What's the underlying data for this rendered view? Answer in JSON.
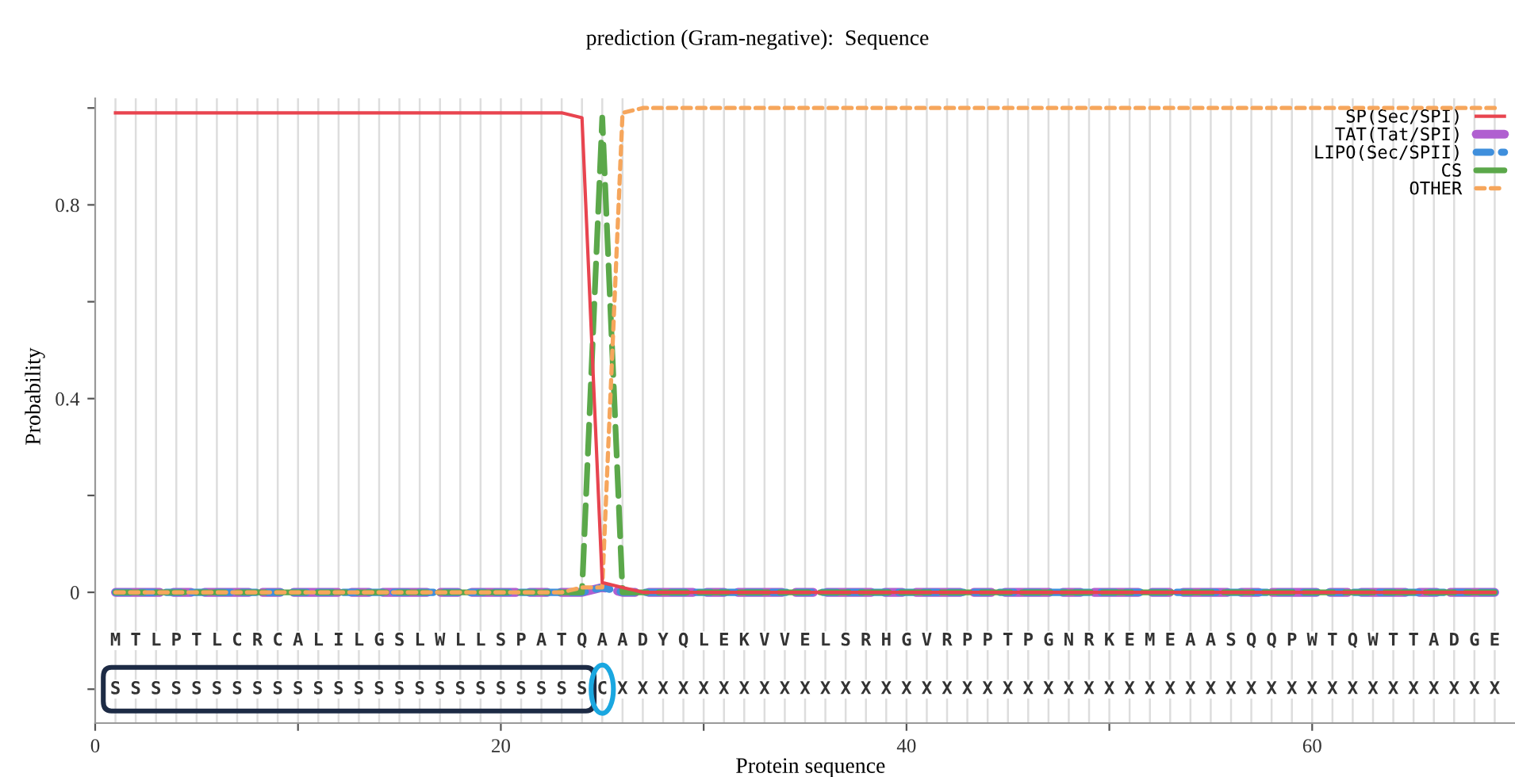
{
  "chart_data": {
    "type": "line",
    "title": "prediction (Gram-negative):  Sequence",
    "xlabel": "Protein sequence",
    "ylabel": "Probability",
    "x": [
      1,
      2,
      3,
      4,
      5,
      6,
      7,
      8,
      9,
      10,
      11,
      12,
      13,
      14,
      15,
      16,
      17,
      18,
      19,
      20,
      21,
      22,
      23,
      24,
      25,
      26,
      27,
      28,
      29,
      30,
      31,
      32,
      33,
      34,
      35,
      36,
      37,
      38,
      39,
      40,
      41,
      42,
      43,
      44,
      45,
      46,
      47,
      48,
      49,
      50,
      51,
      52,
      53,
      54,
      55,
      56,
      57,
      58,
      59,
      60,
      61,
      62,
      63,
      64,
      65,
      66,
      67,
      68,
      69
    ],
    "series": [
      {
        "name": "SP(Sec/SPI)",
        "color": "#e8444f",
        "line_style": "solid",
        "values": [
          0.99,
          0.99,
          0.99,
          0.99,
          0.99,
          0.99,
          0.99,
          0.99,
          0.99,
          0.99,
          0.99,
          0.99,
          0.99,
          0.99,
          0.99,
          0.99,
          0.99,
          0.99,
          0.99,
          0.99,
          0.99,
          0.99,
          0.99,
          0.98,
          0.02,
          0.01,
          0,
          0,
          0,
          0,
          0,
          0,
          0,
          0,
          0,
          0,
          0,
          0,
          0,
          0,
          0,
          0,
          0,
          0,
          0,
          0,
          0,
          0,
          0,
          0,
          0,
          0,
          0,
          0,
          0,
          0,
          0,
          0,
          0,
          0,
          0,
          0,
          0,
          0,
          0,
          0,
          0,
          0,
          0
        ]
      },
      {
        "name": "TAT(Tat/SPI)",
        "color": "#b05fd0",
        "line_style": "dashdot",
        "values": [
          0,
          0,
          0,
          0,
          0,
          0,
          0,
          0,
          0,
          0,
          0,
          0,
          0,
          0,
          0,
          0,
          0,
          0,
          0,
          0,
          0,
          0,
          0,
          0,
          0.01,
          0,
          0,
          0,
          0,
          0,
          0,
          0,
          0,
          0,
          0,
          0,
          0,
          0,
          0,
          0,
          0,
          0,
          0,
          0,
          0,
          0,
          0,
          0,
          0,
          0,
          0,
          0,
          0,
          0,
          0,
          0,
          0,
          0,
          0,
          0,
          0,
          0,
          0,
          0,
          0,
          0,
          0,
          0,
          0
        ]
      },
      {
        "name": "LIPO(Sec/SPII)",
        "color": "#3f8fdc",
        "line_style": "dotted",
        "values": [
          0,
          0,
          0,
          0,
          0,
          0,
          0,
          0,
          0,
          0,
          0,
          0,
          0,
          0,
          0,
          0,
          0,
          0,
          0,
          0,
          0,
          0,
          0,
          0,
          0.01,
          0,
          0,
          0,
          0,
          0,
          0,
          0,
          0,
          0,
          0,
          0,
          0,
          0,
          0,
          0,
          0,
          0,
          0,
          0,
          0,
          0,
          0,
          0,
          0,
          0,
          0,
          0,
          0,
          0,
          0,
          0,
          0,
          0,
          0,
          0,
          0,
          0,
          0,
          0,
          0,
          0,
          0,
          0,
          0
        ]
      },
      {
        "name": "CS",
        "color": "#5ba84a",
        "line_style": "dashed",
        "values": [
          0,
          0,
          0,
          0,
          0,
          0,
          0,
          0,
          0,
          0,
          0,
          0,
          0,
          0,
          0,
          0,
          0,
          0,
          0,
          0,
          0,
          0,
          0,
          0,
          0.98,
          0,
          0,
          0,
          0,
          0,
          0,
          0,
          0,
          0,
          0,
          0,
          0,
          0,
          0,
          0,
          0,
          0,
          0,
          0,
          0,
          0,
          0,
          0,
          0,
          0,
          0,
          0,
          0,
          0,
          0,
          0,
          0,
          0,
          0,
          0,
          0,
          0,
          0,
          0,
          0,
          0,
          0,
          0,
          0
        ]
      },
      {
        "name": "OTHER",
        "color": "#f6a65c",
        "line_style": "dotted",
        "values": [
          0,
          0,
          0,
          0,
          0,
          0,
          0,
          0,
          0,
          0,
          0,
          0,
          0,
          0,
          0,
          0,
          0,
          0,
          0,
          0,
          0,
          0,
          0,
          0.01,
          0.01,
          0.99,
          1,
          1,
          1,
          1,
          1,
          1,
          1,
          1,
          1,
          1,
          1,
          1,
          1,
          1,
          1,
          1,
          1,
          1,
          1,
          1,
          1,
          1,
          1,
          1,
          1,
          1,
          1,
          1,
          1,
          1,
          1,
          1,
          1,
          1,
          1,
          1,
          1,
          1,
          1,
          1,
          1,
          1,
          1
        ]
      }
    ],
    "xlim": [
      0,
      70
    ],
    "xticks": [
      0,
      {
        "value": 10,
        "label": null
      },
      20,
      {
        "value": 30,
        "label": null
      },
      40,
      {
        "value": 50,
        "label": null
      },
      60
    ],
    "ylim": [
      -0.27,
      1.02
    ],
    "yticks": [
      {
        "value": -0.2,
        "label": null
      },
      0,
      {
        "value": 0.2,
        "label": null
      },
      0.4,
      {
        "value": 0.6,
        "label": null
      },
      0.8,
      {
        "value": 1.0,
        "label": null
      }
    ],
    "grid": "x",
    "legend": "top right",
    "annotations": [
      {
        "text": "M",
        "x": 1,
        "y": -0.1
      },
      {
        "text": "T",
        "x": 2,
        "y": -0.1
      },
      {
        "text": "L",
        "x": 3,
        "y": -0.1
      },
      {
        "text": "P",
        "x": 4,
        "y": -0.1
      },
      {
        "text": "T",
        "x": 5,
        "y": -0.1
      },
      {
        "text": "L",
        "x": 6,
        "y": -0.1
      },
      {
        "text": "C",
        "x": 7,
        "y": -0.1
      },
      {
        "text": "R",
        "x": 8,
        "y": -0.1
      },
      {
        "text": "C",
        "x": 9,
        "y": -0.1
      },
      {
        "text": "A",
        "x": 10,
        "y": -0.1
      },
      {
        "text": "L",
        "x": 11,
        "y": -0.1
      },
      {
        "text": "I",
        "x": 12,
        "y": -0.1
      },
      {
        "text": "L",
        "x": 13,
        "y": -0.1
      },
      {
        "text": "G",
        "x": 14,
        "y": -0.1
      },
      {
        "text": "S",
        "x": 15,
        "y": -0.1
      },
      {
        "text": "L",
        "x": 16,
        "y": -0.1
      },
      {
        "text": "W",
        "x": 17,
        "y": -0.1
      },
      {
        "text": "L",
        "x": 18,
        "y": -0.1
      },
      {
        "text": "L",
        "x": 19,
        "y": -0.1
      },
      {
        "text": "S",
        "x": 20,
        "y": -0.1
      },
      {
        "text": "P",
        "x": 21,
        "y": -0.1
      },
      {
        "text": "A",
        "x": 22,
        "y": -0.1
      },
      {
        "text": "T",
        "x": 23,
        "y": -0.1
      },
      {
        "text": "Q",
        "x": 24,
        "y": -0.1
      },
      {
        "text": "A",
        "x": 25,
        "y": -0.1
      },
      {
        "text": "A",
        "x": 26,
        "y": -0.1
      },
      {
        "text": "D",
        "x": 27,
        "y": -0.1
      },
      {
        "text": "Y",
        "x": 28,
        "y": -0.1
      },
      {
        "text": "Q",
        "x": 29,
        "y": -0.1
      },
      {
        "text": "L",
        "x": 30,
        "y": -0.1
      },
      {
        "text": "E",
        "x": 31,
        "y": -0.1
      },
      {
        "text": "K",
        "x": 32,
        "y": -0.1
      },
      {
        "text": "V",
        "x": 33,
        "y": -0.1
      },
      {
        "text": "V",
        "x": 34,
        "y": -0.1
      },
      {
        "text": "E",
        "x": 35,
        "y": -0.1
      },
      {
        "text": "L",
        "x": 36,
        "y": -0.1
      },
      {
        "text": "S",
        "x": 37,
        "y": -0.1
      },
      {
        "text": "R",
        "x": 38,
        "y": -0.1
      },
      {
        "text": "H",
        "x": 39,
        "y": -0.1
      },
      {
        "text": "G",
        "x": 40,
        "y": -0.1
      },
      {
        "text": "V",
        "x": 41,
        "y": -0.1
      },
      {
        "text": "R",
        "x": 42,
        "y": -0.1
      },
      {
        "text": "P",
        "x": 43,
        "y": -0.1
      },
      {
        "text": "P",
        "x": 44,
        "y": -0.1
      },
      {
        "text": "T",
        "x": 45,
        "y": -0.1
      },
      {
        "text": "P",
        "x": 46,
        "y": -0.1
      },
      {
        "text": "G",
        "x": 47,
        "y": -0.1
      },
      {
        "text": "N",
        "x": 48,
        "y": -0.1
      },
      {
        "text": "R",
        "x": 49,
        "y": -0.1
      },
      {
        "text": "K",
        "x": 50,
        "y": -0.1
      },
      {
        "text": "E",
        "x": 51,
        "y": -0.1
      },
      {
        "text": "M",
        "x": 52,
        "y": -0.1
      },
      {
        "text": "E",
        "x": 53,
        "y": -0.1
      },
      {
        "text": "A",
        "x": 54,
        "y": -0.1
      },
      {
        "text": "A",
        "x": 55,
        "y": -0.1
      },
      {
        "text": "S",
        "x": 56,
        "y": -0.1
      },
      {
        "text": "Q",
        "x": 57,
        "y": -0.1
      },
      {
        "text": "Q",
        "x": 58,
        "y": -0.1
      },
      {
        "text": "P",
        "x": 59,
        "y": -0.1
      },
      {
        "text": "W",
        "x": 60,
        "y": -0.1
      },
      {
        "text": "T",
        "x": 61,
        "y": -0.1
      },
      {
        "text": "Q",
        "x": 62,
        "y": -0.1
      },
      {
        "text": "W",
        "x": 63,
        "y": -0.1
      },
      {
        "text": "T",
        "x": 64,
        "y": -0.1
      },
      {
        "text": "T",
        "x": 65,
        "y": -0.1
      },
      {
        "text": "A",
        "x": 66,
        "y": -0.1
      },
      {
        "text": "D",
        "x": 67,
        "y": -0.1
      },
      {
        "text": "G",
        "x": 68,
        "y": -0.1
      },
      {
        "text": "E",
        "x": 69,
        "y": -0.1
      },
      {
        "text": "S",
        "x": 1,
        "y": -0.2
      },
      {
        "text": "S",
        "x": 2,
        "y": -0.2
      },
      {
        "text": "S",
        "x": 3,
        "y": -0.2
      },
      {
        "text": "S",
        "x": 4,
        "y": -0.2
      },
      {
        "text": "S",
        "x": 5,
        "y": -0.2
      },
      {
        "text": "S",
        "x": 6,
        "y": -0.2
      },
      {
        "text": "S",
        "x": 7,
        "y": -0.2
      },
      {
        "text": "S",
        "x": 8,
        "y": -0.2
      },
      {
        "text": "S",
        "x": 9,
        "y": -0.2
      },
      {
        "text": "S",
        "x": 10,
        "y": -0.2
      },
      {
        "text": "S",
        "x": 11,
        "y": -0.2
      },
      {
        "text": "S",
        "x": 12,
        "y": -0.2
      },
      {
        "text": "S",
        "x": 13,
        "y": -0.2
      },
      {
        "text": "S",
        "x": 14,
        "y": -0.2
      },
      {
        "text": "S",
        "x": 15,
        "y": -0.2
      },
      {
        "text": "S",
        "x": 16,
        "y": -0.2
      },
      {
        "text": "S",
        "x": 17,
        "y": -0.2
      },
      {
        "text": "S",
        "x": 18,
        "y": -0.2
      },
      {
        "text": "S",
        "x": 19,
        "y": -0.2
      },
      {
        "text": "S",
        "x": 20,
        "y": -0.2
      },
      {
        "text": "S",
        "x": 21,
        "y": -0.2
      },
      {
        "text": "S",
        "x": 22,
        "y": -0.2
      },
      {
        "text": "S",
        "x": 23,
        "y": -0.2
      },
      {
        "text": "S",
        "x": 24,
        "y": -0.2
      },
      {
        "text": "C",
        "x": 25,
        "y": -0.2
      },
      {
        "text": "X",
        "x": 26,
        "y": -0.2
      },
      {
        "text": "X",
        "x": 27,
        "y": -0.2
      },
      {
        "text": "X",
        "x": 28,
        "y": -0.2
      },
      {
        "text": "X",
        "x": 29,
        "y": -0.2
      },
      {
        "text": "X",
        "x": 30,
        "y": -0.2
      },
      {
        "text": "X",
        "x": 31,
        "y": -0.2
      },
      {
        "text": "X",
        "x": 32,
        "y": -0.2
      },
      {
        "text": "X",
        "x": 33,
        "y": -0.2
      },
      {
        "text": "X",
        "x": 34,
        "y": -0.2
      },
      {
        "text": "X",
        "x": 35,
        "y": -0.2
      },
      {
        "text": "X",
        "x": 36,
        "y": -0.2
      },
      {
        "text": "X",
        "x": 37,
        "y": -0.2
      },
      {
        "text": "X",
        "x": 38,
        "y": -0.2
      },
      {
        "text": "X",
        "x": 39,
        "y": -0.2
      },
      {
        "text": "X",
        "x": 40,
        "y": -0.2
      },
      {
        "text": "X",
        "x": 41,
        "y": -0.2
      },
      {
        "text": "X",
        "x": 42,
        "y": -0.2
      },
      {
        "text": "X",
        "x": 43,
        "y": -0.2
      },
      {
        "text": "X",
        "x": 44,
        "y": -0.2
      },
      {
        "text": "X",
        "x": 45,
        "y": -0.2
      },
      {
        "text": "X",
        "x": 46,
        "y": -0.2
      },
      {
        "text": "X",
        "x": 47,
        "y": -0.2
      },
      {
        "text": "X",
        "x": 48,
        "y": -0.2
      },
      {
        "text": "X",
        "x": 49,
        "y": -0.2
      },
      {
        "text": "X",
        "x": 50,
        "y": -0.2
      },
      {
        "text": "X",
        "x": 51,
        "y": -0.2
      },
      {
        "text": "X",
        "x": 52,
        "y": -0.2
      },
      {
        "text": "X",
        "x": 53,
        "y": -0.2
      },
      {
        "text": "X",
        "x": 54,
        "y": -0.2
      },
      {
        "text": "X",
        "x": 55,
        "y": -0.2
      },
      {
        "text": "X",
        "x": 56,
        "y": -0.2
      },
      {
        "text": "X",
        "x": 57,
        "y": -0.2
      },
      {
        "text": "X",
        "x": 58,
        "y": -0.2
      },
      {
        "text": "X",
        "x": 59,
        "y": -0.2
      },
      {
        "text": "X",
        "x": 60,
        "y": -0.2
      },
      {
        "text": "X",
        "x": 61,
        "y": -0.2
      },
      {
        "text": "X",
        "x": 62,
        "y": -0.2
      },
      {
        "text": "X",
        "x": 63,
        "y": -0.2
      },
      {
        "text": "X",
        "x": 64,
        "y": -0.2
      },
      {
        "text": "X",
        "x": 65,
        "y": -0.2
      },
      {
        "text": "X",
        "x": 66,
        "y": -0.2
      },
      {
        "text": "X",
        "x": 67,
        "y": -0.2
      },
      {
        "text": "X",
        "x": 68,
        "y": -0.2
      },
      {
        "text": "X",
        "x": 69,
        "y": -0.2
      }
    ]
  }
}
